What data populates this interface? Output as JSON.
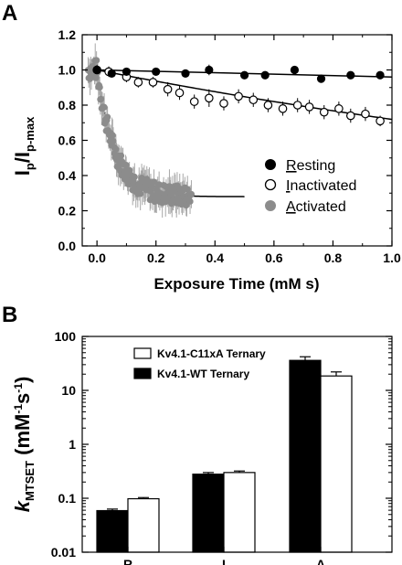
{
  "chart_data": [
    {
      "type": "scatter",
      "panel_label": "A",
      "xlabel": "Exposure Time (mM s)",
      "ylabel_main": "I",
      "ylabel_sub1": "p",
      "ylabel_mid": "/I",
      "ylabel_sub2": "p-max",
      "xlim": [
        -0.05,
        1.0
      ],
      "ylim": [
        0.0,
        1.2
      ],
      "xticks": [
        0.0,
        0.2,
        0.4,
        0.6,
        0.8,
        1.0
      ],
      "xtick_labels": [
        "0.0",
        "0.2",
        "0.4",
        "0.6",
        "0.8",
        "1.0"
      ],
      "yticks": [
        0.0,
        0.2,
        0.4,
        0.6,
        0.8,
        1.0,
        1.2
      ],
      "ytick_labels": [
        "0.0",
        "0.2",
        "0.4",
        "0.6",
        "0.8",
        "1.0",
        "1.2"
      ],
      "legend_position": "right-middle",
      "series": [
        {
          "name": "Resting",
          "legend_first": "R",
          "legend_rest": "esting",
          "marker": "filled-black",
          "color": "#000000",
          "x": [
            0.0,
            0.05,
            0.1,
            0.2,
            0.3,
            0.38,
            0.5,
            0.57,
            0.67,
            0.76,
            0.86,
            0.96
          ],
          "y": [
            1.0,
            0.98,
            0.99,
            0.99,
            0.98,
            1.0,
            0.97,
            0.97,
            1.0,
            0.95,
            0.97,
            0.97
          ],
          "err": [
            0.02,
            0.02,
            0.02,
            0.02,
            0.02,
            0.03,
            0.02,
            0.02,
            0.02,
            0.02,
            0.02,
            0.02
          ],
          "fit_x": [
            0.0,
            1.0
          ],
          "fit_y": [
            1.0,
            0.96
          ]
        },
        {
          "name": "Inactivated",
          "legend_first": "I",
          "legend_rest": "nactivated",
          "marker": "open-black",
          "color": "#000000",
          "x": [
            0.0,
            0.04,
            0.1,
            0.14,
            0.19,
            0.24,
            0.28,
            0.33,
            0.38,
            0.43,
            0.48,
            0.53,
            0.58,
            0.63,
            0.68,
            0.72,
            0.77,
            0.82,
            0.86,
            0.91,
            0.96
          ],
          "y": [
            1.0,
            0.99,
            0.96,
            0.93,
            0.93,
            0.89,
            0.87,
            0.82,
            0.84,
            0.81,
            0.85,
            0.83,
            0.8,
            0.78,
            0.8,
            0.79,
            0.76,
            0.78,
            0.74,
            0.75,
            0.71
          ],
          "err": [
            0.03,
            0.03,
            0.03,
            0.03,
            0.03,
            0.04,
            0.04,
            0.04,
            0.05,
            0.04,
            0.04,
            0.04,
            0.04,
            0.04,
            0.04,
            0.04,
            0.04,
            0.04,
            0.04,
            0.04,
            0.03
          ],
          "fit": "1.0*exp(-0.33*x)"
        },
        {
          "name": "Activated",
          "legend_first": "A",
          "legend_rest": "ctivated",
          "marker": "filled-gray",
          "color": "#8c8c8c",
          "fit": "0.28+0.72*exp(-x/0.06)",
          "fit_x_range": [
            0.0,
            0.5
          ]
        }
      ]
    },
    {
      "type": "bar",
      "panel_label": "B",
      "y_scale": "log",
      "ylabel_k": "k",
      "ylabel_sub": "MTSET",
      "ylabel_unit_open": " (mM",
      "ylabel_sup1": "-1",
      "ylabel_s": "s",
      "ylabel_sup2": "-1",
      "ylabel_close": ")",
      "ylim": [
        0.01,
        100
      ],
      "yticks": [
        0.01,
        0.1,
        1,
        10,
        100
      ],
      "ytick_labels": [
        "0.01",
        "0.1",
        "1",
        "10",
        "100"
      ],
      "categories": [
        "R",
        "I",
        "A"
      ],
      "legend_position": "top-left",
      "series": [
        {
          "name": "Kv4.1-WT Ternary",
          "fill": "#000000",
          "values": [
            0.059,
            0.28,
            36.0
          ],
          "err": [
            0.004,
            0.02,
            6.0
          ]
        },
        {
          "name": "Kv4.1-C11xA Ternary",
          "fill": "#ffffff",
          "values": [
            0.098,
            0.3,
            18.5
          ],
          "err": [
            0.005,
            0.02,
            3.5
          ]
        }
      ]
    }
  ]
}
